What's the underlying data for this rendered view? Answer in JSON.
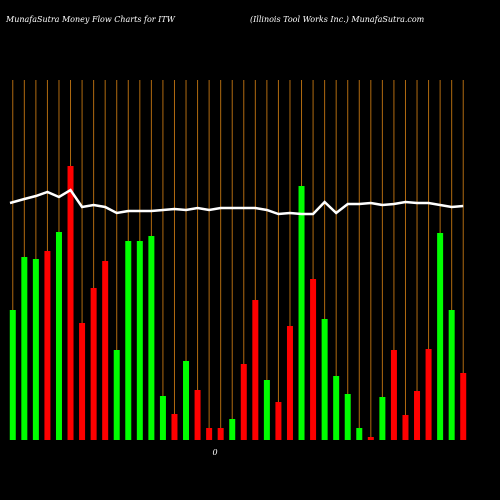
{
  "chart_data": {
    "type": "bar",
    "title": "MunafaSutra  Money Flow  Charts for ITW",
    "subtitle": "(Illinois Tool Works Inc.) MunafaSutra.com",
    "x_axis_label": "0",
    "values": [
      130,
      183,
      181,
      189,
      208,
      274,
      117,
      152,
      179,
      90,
      199,
      199,
      204,
      44,
      26,
      79,
      50,
      12,
      12,
      21,
      76,
      140,
      60,
      38,
      114,
      254,
      161,
      121,
      64,
      46,
      12,
      3,
      43,
      90,
      25,
      49,
      91,
      207,
      130,
      67
    ],
    "colors": [
      "#00ff00",
      "#00ff00",
      "#00ff00",
      "#ff0000",
      "#00ff00",
      "#ff0000",
      "#ff0000",
      "#ff0000",
      "#ff0000",
      "#00ff00",
      "#00ff00",
      "#00ff00",
      "#00ff00",
      "#00ff00",
      "#ff0000",
      "#00ff00",
      "#ff0000",
      "#ff0000",
      "#ff0000",
      "#00ff00",
      "#ff0000",
      "#ff0000",
      "#00ff00",
      "#ff0000",
      "#ff0000",
      "#00ff00",
      "#ff0000",
      "#00ff00",
      "#00ff00",
      "#00ff00",
      "#00ff00",
      "#ff0000",
      "#00ff00",
      "#ff0000",
      "#ff0000",
      "#ff0000",
      "#ff0000",
      "#00ff00",
      "#00ff00",
      "#ff0000"
    ],
    "line": {
      "color": "#ffffff",
      "values": [
        237,
        241,
        244,
        248,
        243,
        250,
        233,
        235,
        233,
        227,
        229,
        229,
        229,
        230,
        231,
        230,
        232,
        230,
        232,
        232,
        232,
        232,
        230,
        226,
        227,
        226,
        226,
        238,
        227,
        236,
        236,
        237,
        235,
        236,
        238,
        237,
        237,
        235,
        233,
        234
      ]
    },
    "ylim": [
      0,
      360
    ],
    "grid": true,
    "grid_color": "#b06a10",
    "background": "#000000"
  }
}
